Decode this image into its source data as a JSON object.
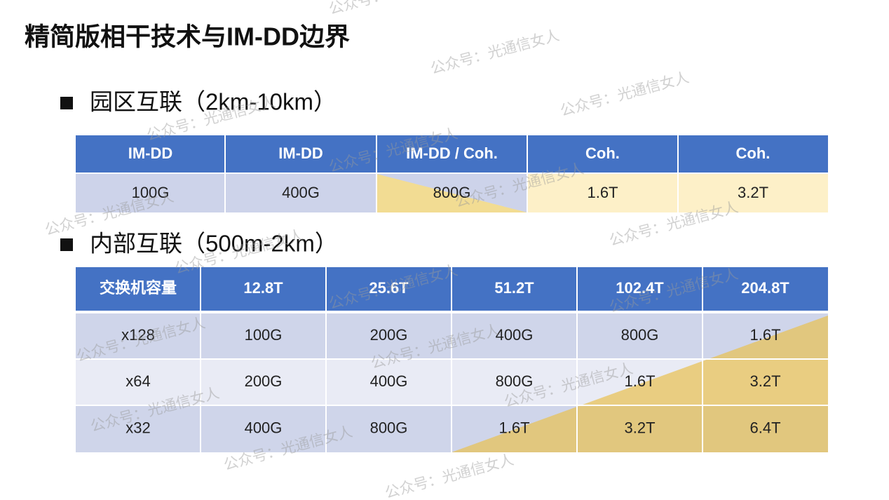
{
  "title": "精简版相干技术与IM-DD边界",
  "watermark": "公众号：光通信女人",
  "section1": {
    "heading": "园区互联（2km-10km）",
    "table": {
      "header": [
        "IM-DD",
        "IM-DD",
        "IM-DD / Coh.",
        "Coh.",
        "Coh."
      ],
      "rows": [
        [
          "100G",
          "400G",
          "800G",
          "1.6T",
          "3.2T"
        ]
      ]
    }
  },
  "section2": {
    "heading": "内部互联（500m-2km）",
    "table": {
      "header": [
        "交换机容量",
        "12.8T",
        "25.6T",
        "51.2T",
        "102.4T",
        "204.8T"
      ],
      "rows": [
        [
          "x128",
          "100G",
          "200G",
          "400G",
          "800G",
          "1.6T"
        ],
        [
          "x64",
          "200G",
          "400G",
          "800G",
          "1.6T",
          "3.2T"
        ],
        [
          "x32",
          "400G",
          "800G",
          "1.6T",
          "3.2T",
          "6.4T"
        ]
      ]
    }
  }
}
